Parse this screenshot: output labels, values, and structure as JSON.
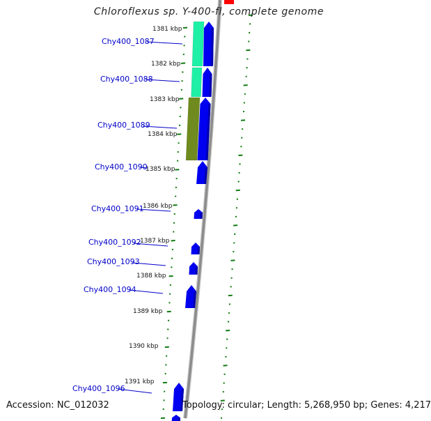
{
  "title": "Chloroflexus sp. Y-400-fl, complete genome",
  "accession": "Accession: NC_012032",
  "summary": "Topology: circular; Length: 5,268,950 bp; Genes: 4,217",
  "colors": {
    "backbone": "#8c8c8c",
    "gene_forward": "#0000f0",
    "feature_cyan": "#1ef0a6",
    "feature_olive": "#6f8a1e",
    "feature_red": "#ff0000",
    "dots": "#117a11",
    "label": "#0000c8"
  },
  "kbp_labels": [
    "1381 kbp",
    "1382 kbp",
    "1383 kbp",
    "1384 kbp",
    "1385 kbp",
    "1386 kbp",
    "1387 kbp",
    "1388 kbp",
    "1389 kbp",
    "1390 kbp",
    "1391 kbp"
  ],
  "gene_labels": [
    "Chy400_1087",
    "Chy400_1088",
    "Chy400_1089",
    "Chy400_1090",
    "Chy400_1091",
    "Chy400_1092",
    "Chy400_1093",
    "Chy400_1094",
    "Chy400_1096"
  ]
}
